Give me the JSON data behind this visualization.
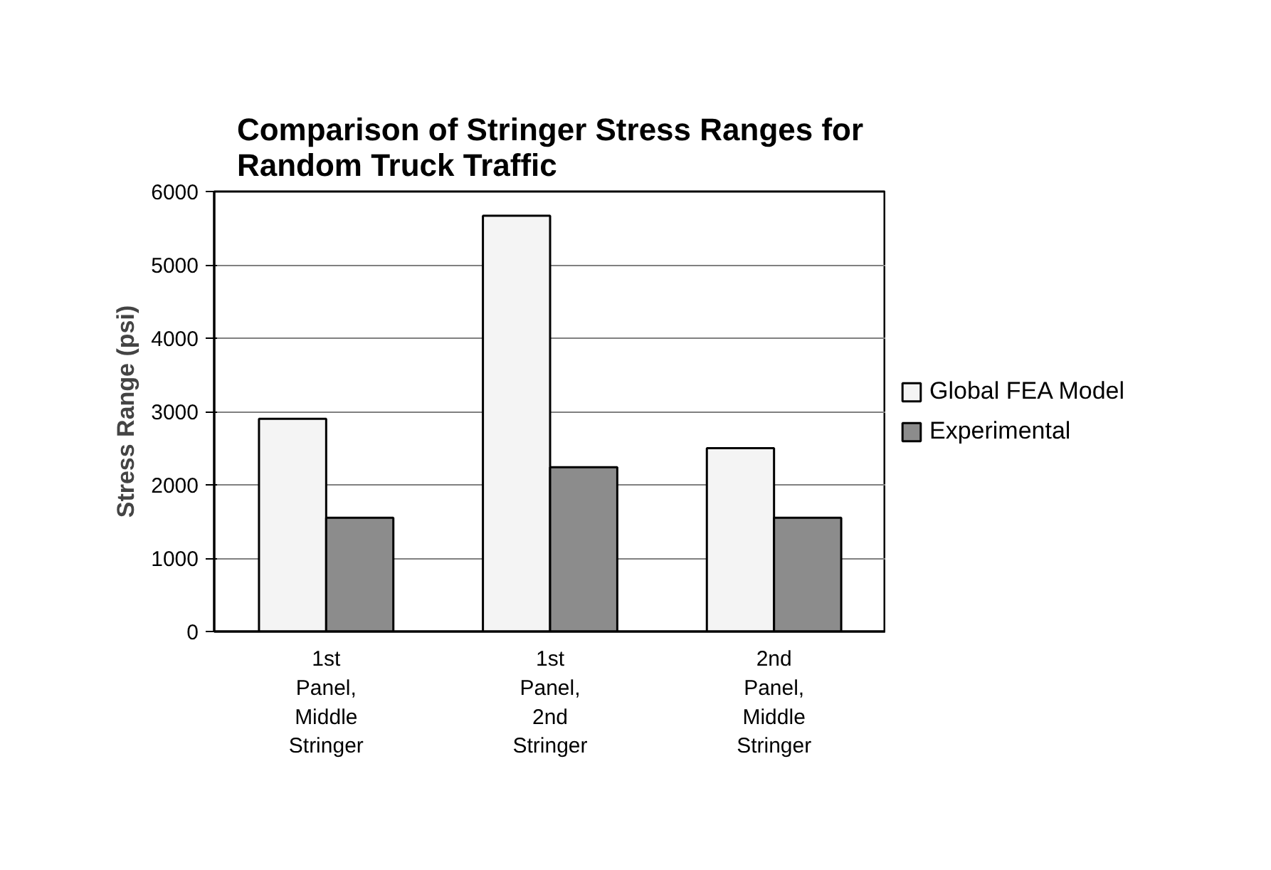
{
  "chart_data": {
    "type": "bar",
    "title": "Comparison of Stringer Stress Ranges for Random Truck Traffic",
    "ylabel": "Stress Range (psi)",
    "categories": [
      "1st Panel, Middle Stringer",
      "1st Panel, 2nd Stringer",
      "2nd Panel, Middle Stringer"
    ],
    "series": [
      {
        "name": "Global FEA Model",
        "color": "#f4f4f4",
        "values": [
          2900,
          5670,
          2500
        ]
      },
      {
        "name": "Experimental",
        "color": "#8c8c8c",
        "values": [
          1550,
          2240,
          1550
        ]
      }
    ],
    "ylim": [
      0,
      6000
    ],
    "yticks": [
      0,
      1000,
      2000,
      3000,
      4000,
      5000,
      6000
    ],
    "grid": "y",
    "legend": "right"
  }
}
